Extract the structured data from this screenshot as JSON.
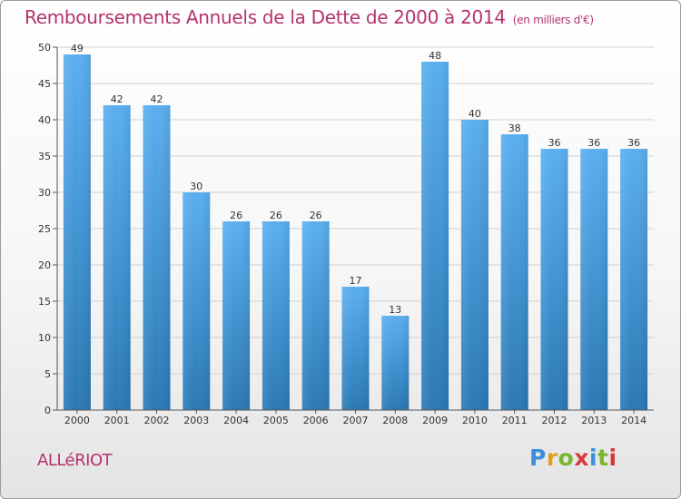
{
  "header": {
    "title": "Remboursements Annuels de la Dette de 2000 à 2014",
    "unit": "(en milliers d'€)"
  },
  "town": "ALLéRIOT",
  "logo": {
    "letters": [
      "P",
      "r",
      "o",
      "x",
      "i",
      "t",
      "i"
    ],
    "colors": [
      "#3b8fd9",
      "#e0a020",
      "#79b52f",
      "#d6393c",
      "#3b8fd9",
      "#79b52f",
      "#d6393c"
    ]
  },
  "colors": {
    "bar_top": "#5aaff0",
    "bar_bottom": "#2a78b5",
    "title": "#b3336d"
  },
  "chart_data": {
    "type": "bar",
    "title": "Remboursements Annuels de la Dette de 2000 à 2014",
    "ylabel": "(en milliers d'€)",
    "xlabel": "",
    "categories": [
      "2000",
      "2001",
      "2002",
      "2003",
      "2004",
      "2005",
      "2006",
      "2007",
      "2008",
      "2009",
      "2010",
      "2011",
      "2012",
      "2013",
      "2014"
    ],
    "values": [
      49,
      42,
      42,
      30,
      26,
      26,
      26,
      17,
      13,
      48,
      40,
      38,
      36,
      36,
      36
    ],
    "ylim": [
      0,
      50
    ],
    "yticks": [
      0,
      5,
      10,
      15,
      20,
      25,
      30,
      35,
      40,
      45,
      50
    ],
    "grid": true
  }
}
